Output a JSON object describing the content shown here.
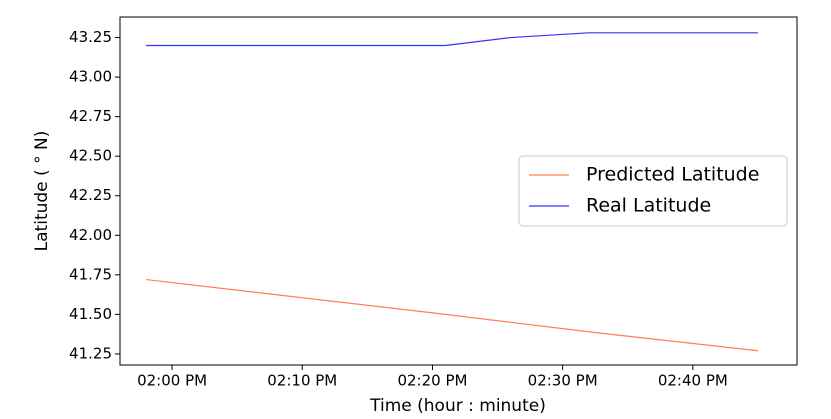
{
  "chart_data": {
    "type": "line",
    "x_label": "Time (hour : minute)",
    "y_label": "Latitude ( ° N)",
    "x": [
      "01:58 PM",
      "02:21 PM",
      "02:26 PM",
      "02:32 PM",
      "02:45 PM"
    ],
    "series": [
      {
        "name": "Predicted Latitude",
        "color": "#ff7f50",
        "values": [
          41.72,
          41.5,
          41.45,
          41.39,
          41.27
        ]
      },
      {
        "name": "Real Latitude",
        "color": "#3333ff",
        "values": [
          43.2,
          43.2,
          43.25,
          43.28,
          43.28
        ]
      }
    ],
    "xlim": [
      "01:56 PM",
      "02:48 PM"
    ],
    "xticks": [
      "02:00 PM",
      "02:10 PM",
      "02:20 PM",
      "02:30 PM",
      "02:40 PM"
    ],
    "ylim": [
      41.18,
      43.38
    ],
    "yticks": [
      41.25,
      41.5,
      41.75,
      42.0,
      42.25,
      42.5,
      42.75,
      43.0,
      43.25
    ],
    "ytick_labels": [
      "41.25",
      "41.50",
      "41.75",
      "42.00",
      "42.25",
      "42.50",
      "42.75",
      "43.00",
      "43.25"
    ],
    "legend": "center right",
    "grid": false
  }
}
